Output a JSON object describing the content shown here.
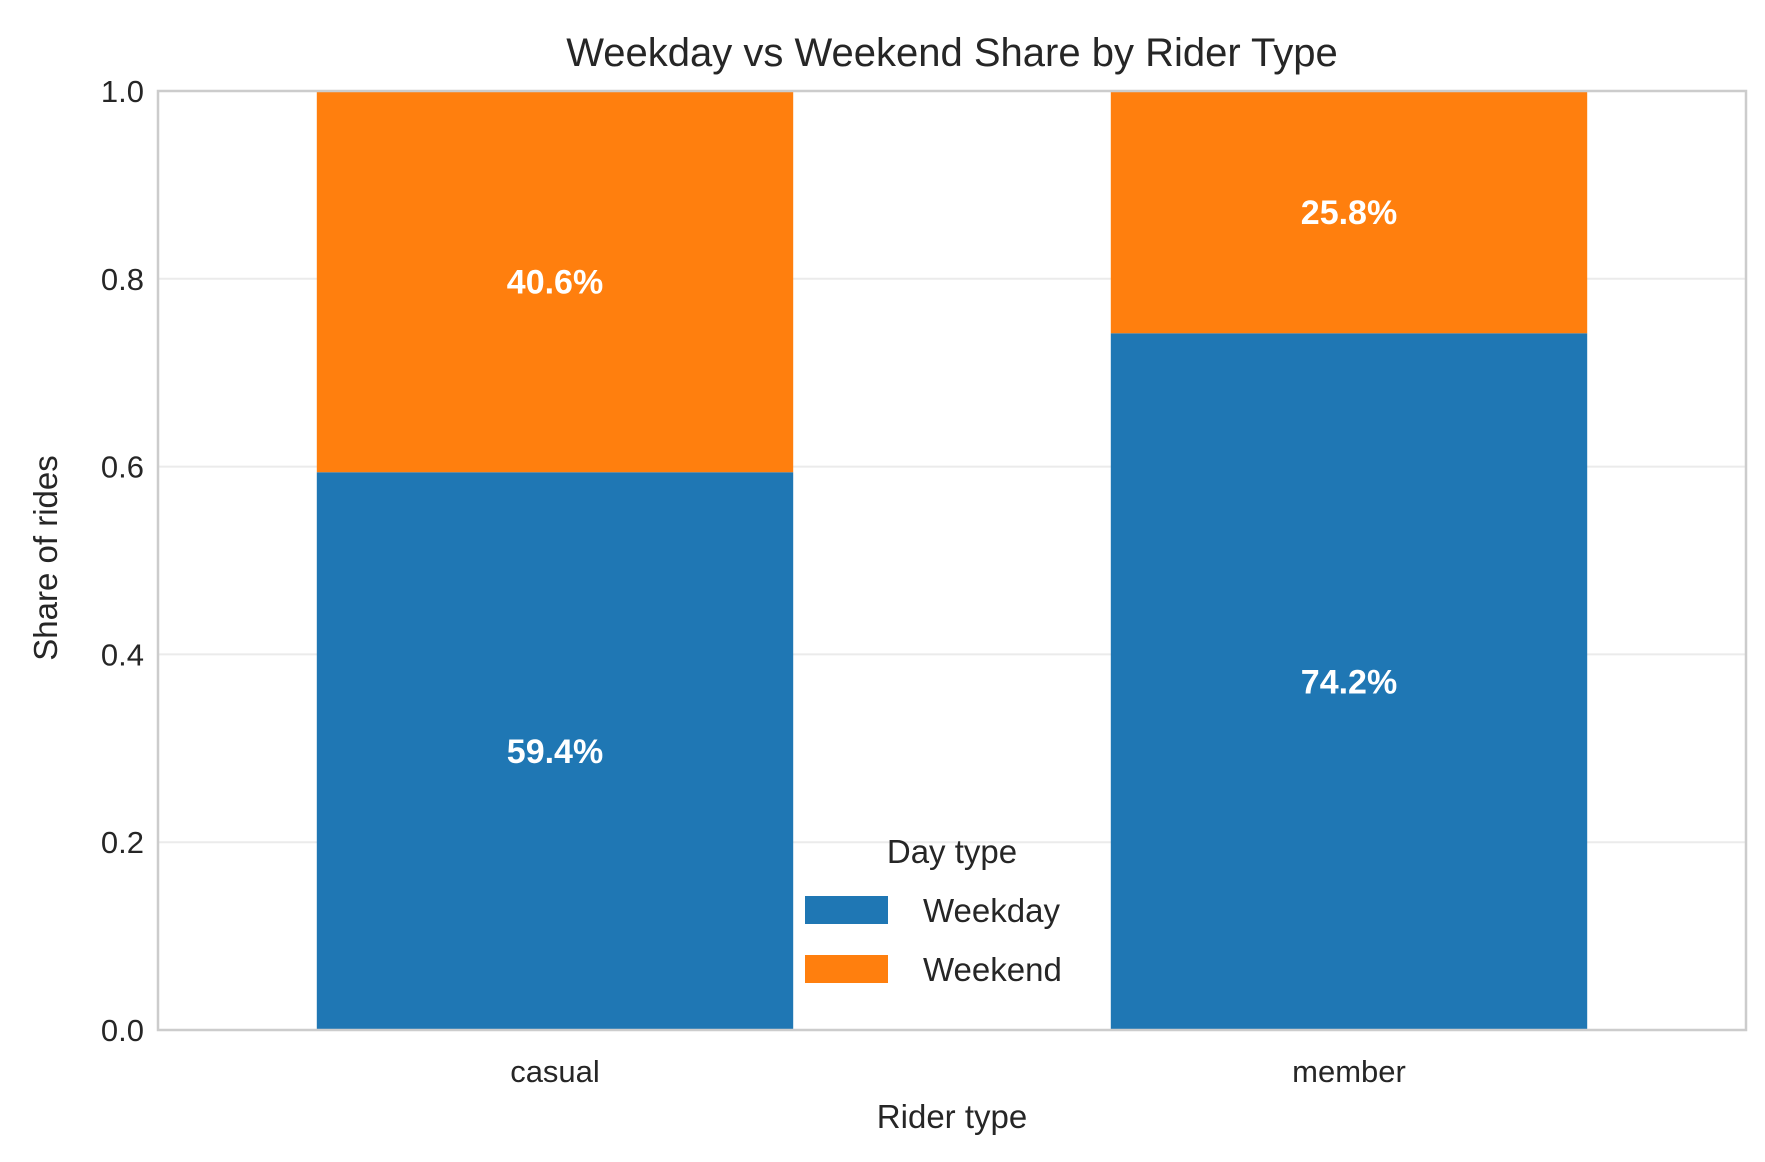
{
  "chart_data": {
    "type": "bar",
    "stacked": true,
    "title": "Weekday vs Weekend Share by Rider Type",
    "xlabel": "Rider type",
    "ylabel": "Share of rides",
    "categories": [
      "casual",
      "member"
    ],
    "series": [
      {
        "name": "Weekday",
        "color": "#1f77b4",
        "values": [
          0.594,
          0.742
        ],
        "labels": [
          "59.4%",
          "74.2%"
        ]
      },
      {
        "name": "Weekend",
        "color": "#ff7f0e",
        "values": [
          0.406,
          0.258
        ],
        "labels": [
          "40.6%",
          "25.8%"
        ]
      }
    ],
    "ylim": [
      0,
      1.0
    ],
    "yticks": [
      0.0,
      0.2,
      0.4,
      0.6,
      0.8,
      1.0
    ],
    "ytick_labels": [
      "0.0",
      "0.2",
      "0.4",
      "0.6",
      "0.8",
      "1.0"
    ],
    "grid": "horizontal",
    "legend": {
      "title": "Day type",
      "placement": "lower-center"
    }
  }
}
